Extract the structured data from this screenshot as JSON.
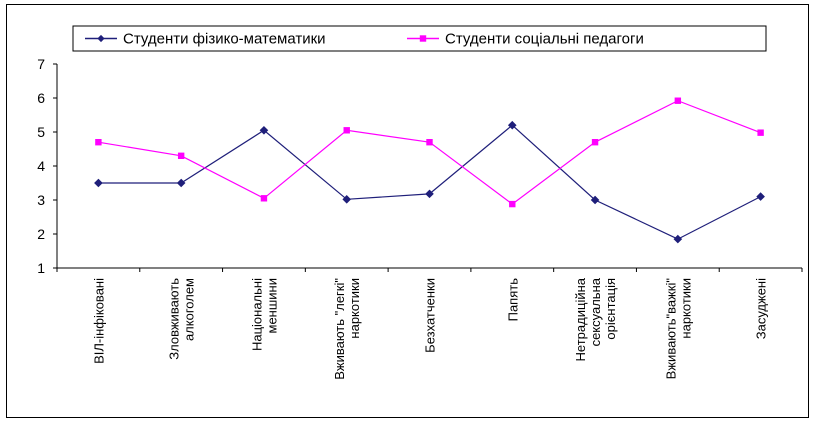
{
  "chart_data": {
    "type": "line",
    "title": "",
    "xlabel": "",
    "ylabel": "",
    "ylim": [
      1,
      7
    ],
    "yticks": [
      1,
      2,
      3,
      4,
      5,
      6,
      7
    ],
    "grid": false,
    "legend_position": "top-center",
    "categories": [
      [
        "ВІЛ-інфіковані"
      ],
      [
        "Зловживають",
        "алкоголем"
      ],
      [
        "Національні",
        "меншини"
      ],
      [
        "Вживають \"легкі\"",
        "наркотики"
      ],
      [
        "Безхатченки"
      ],
      [
        "Папять"
      ],
      [
        "Нетрадиційна",
        "сексуальна",
        "орієнтація"
      ],
      [
        "Вживають\"важкі\"",
        "наркотики"
      ],
      [
        "Засуджені"
      ]
    ],
    "series": [
      {
        "name": "Студенти фізико-математики",
        "color": "#1f1f7a",
        "marker": "diamond",
        "values": [
          3.5,
          3.5,
          5.05,
          3.02,
          3.18,
          5.2,
          3.0,
          1.85,
          3.1
        ]
      },
      {
        "name": "Студенти соціальні педагоги",
        "color": "#ff00ff",
        "marker": "square",
        "values": [
          4.7,
          4.3,
          3.05,
          5.05,
          4.7,
          2.88,
          4.7,
          5.92,
          4.98
        ]
      }
    ]
  }
}
